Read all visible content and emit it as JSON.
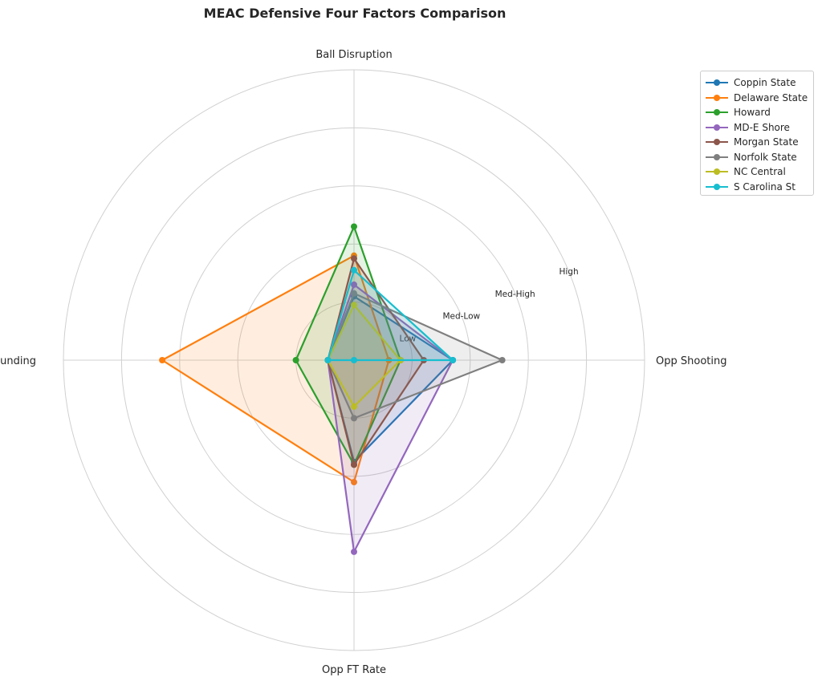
{
  "chart_data": {
    "type": "radar",
    "title": "MEAC Defensive Four Factors Comparison",
    "axes": [
      "Opp Shooting",
      "Ball Disruption",
      "Def Rebounding",
      "Opp FT Rate"
    ],
    "rings": {
      "max": 5,
      "levels": [
        1,
        2,
        3,
        4,
        5
      ]
    },
    "ring_labels": [
      "Low",
      "Med-Low",
      "Med-High",
      "High"
    ],
    "grid": true,
    "legend_position": "top-right",
    "series": [
      {
        "name": "Coppin State",
        "color": "#1f77b4",
        "values": [
          1.7,
          1.1,
          0.45,
          1.75
        ]
      },
      {
        "name": "Delaware State",
        "color": "#ff7f0e",
        "values": [
          0.6,
          1.8,
          3.3,
          2.1
        ]
      },
      {
        "name": "Howard",
        "color": "#2ca02c",
        "values": [
          0.8,
          2.3,
          1.0,
          1.8
        ]
      },
      {
        "name": "MD-E Shore",
        "color": "#9467bd",
        "values": [
          1.7,
          1.3,
          0.45,
          3.3
        ]
      },
      {
        "name": "Morgan State",
        "color": "#8c564b",
        "values": [
          1.2,
          1.75,
          0.45,
          1.8
        ]
      },
      {
        "name": "Norfolk State",
        "color": "#7f7f7f",
        "values": [
          2.55,
          1.15,
          0.45,
          1.0
        ]
      },
      {
        "name": "NC Central",
        "color": "#bcbd22",
        "values": [
          0.8,
          0.95,
          0.45,
          0.8
        ]
      },
      {
        "name": "S Carolina St",
        "color": "#17becf",
        "values": [
          1.7,
          1.55,
          0.45,
          0.0
        ]
      }
    ]
  }
}
